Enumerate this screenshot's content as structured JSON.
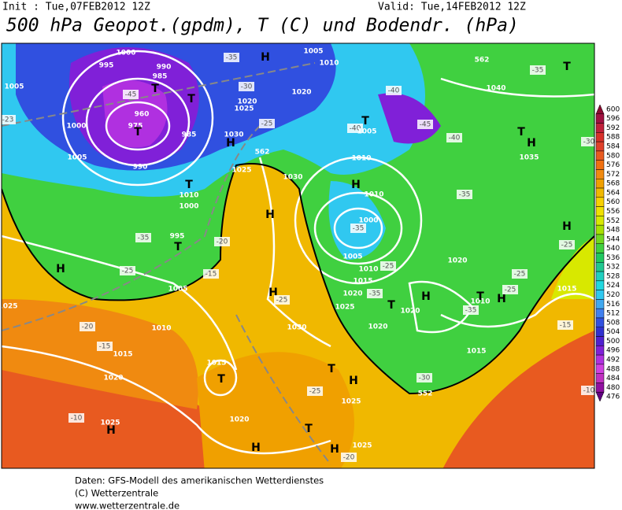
{
  "header": {
    "init": "Init : Tue,07FEB2012 12Z",
    "valid": "Valid: Tue,14FEB2012 12Z"
  },
  "title": "500 hPa Geopot.(gpdm), T (C) und Bodendr. (hPa)",
  "footer": [
    "Daten: GFS-Modell des amerikanischen Wetterdienstes",
    "(C) Wetterzentrale",
    "www.wetterzentrale.de"
  ],
  "colorbar": {
    "values": [
      600,
      596,
      592,
      588,
      584,
      580,
      576,
      572,
      568,
      564,
      560,
      556,
      552,
      548,
      544,
      540,
      536,
      532,
      528,
      524,
      520,
      516,
      512,
      508,
      504,
      500,
      496,
      492,
      488,
      484,
      480,
      476
    ],
    "colors": [
      "#8b0a30",
      "#a01040",
      "#c0203a",
      "#d8302a",
      "#e0402a",
      "#e85a20",
      "#f07010",
      "#f08a10",
      "#f0a000",
      "#f0b800",
      "#f8d000",
      "#f0e000",
      "#d8e800",
      "#a8e000",
      "#70d820",
      "#40d040",
      "#20c860",
      "#20c890",
      "#20d0c0",
      "#20d8e0",
      "#30c8f0",
      "#40a8f0",
      "#4080f0",
      "#3050e0",
      "#3030d0",
      "#5020d0",
      "#8020d8",
      "#b030e0",
      "#d040e0",
      "#c030c0",
      "#9010a0",
      "#600080"
    ]
  },
  "map_labels": [
    "1000",
    "995",
    "990",
    "985",
    "1005",
    "-45",
    "T",
    "T",
    "960",
    "975",
    "T",
    "1000",
    "985",
    "-23",
    "1005",
    "990",
    "T",
    "1000",
    "1010",
    "-35",
    "995",
    "T",
    "H",
    "-25",
    "-20",
    "-15",
    "1015",
    "1020",
    "-10",
    "1025",
    "H",
    "1015",
    "T",
    "1020",
    "H",
    "1025",
    "1005",
    "1010",
    "-15",
    "-20",
    "H",
    "H",
    "-25",
    "1030",
    "-35",
    "H",
    "1005",
    "1010",
    "-30",
    "1020",
    "1025",
    "1030",
    "H",
    "-25",
    "562",
    "1025",
    "1030",
    "1020",
    "T",
    "-40",
    "1005",
    "1010",
    "H",
    "1010",
    "1000",
    "-35",
    "1005",
    "1010",
    "1015",
    "1020",
    "-35",
    "1025",
    "-25",
    "1020",
    "H",
    "1020",
    "T",
    "T",
    "H",
    "-25",
    "1025",
    "T",
    "1025",
    "H",
    "-20",
    "-30",
    "552",
    "1015",
    "-35",
    "-35",
    "1020",
    "1010",
    "T",
    "H",
    "-25",
    "-25",
    "H",
    "T",
    "1035",
    "-40",
    "-45",
    "-40",
    "1040",
    "-35",
    "562",
    "T",
    "-30",
    "H",
    "-25",
    "1015",
    "-15",
    "-10"
  ]
}
